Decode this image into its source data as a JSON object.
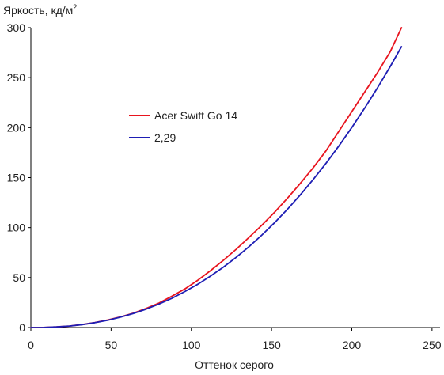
{
  "chart_data": {
    "type": "line",
    "ylabel": "Яркость, кд/м",
    "ylabel_superscript": "2",
    "xlabel": "Оттенок серого",
    "xlim": [
      0,
      255
    ],
    "ylim": [
      0,
      300
    ],
    "x_ticks": [
      "0",
      "50",
      "100",
      "150",
      "200",
      "250"
    ],
    "y_ticks": [
      "0",
      "50",
      "100",
      "150",
      "200",
      "250",
      "300"
    ],
    "grid": false,
    "legend_position": "center-left",
    "series": [
      {
        "name": "Acer Swift Go 14",
        "color": "#e8141e",
        "x": [
          0,
          8,
          16,
          24,
          32,
          40,
          48,
          56,
          64,
          72,
          80,
          88,
          96,
          104,
          112,
          120,
          128,
          136,
          144,
          152,
          160,
          168,
          176,
          184,
          192,
          200,
          208,
          216,
          224,
          231
        ],
        "y": [
          0,
          0.1,
          0.6,
          1.5,
          3.0,
          5.1,
          7.6,
          10.7,
          14.5,
          19.2,
          24.6,
          31.4,
          38.6,
          47.3,
          57.0,
          67.4,
          78.4,
          90.2,
          102.5,
          115.6,
          129.6,
          144.4,
          160.0,
          177.0,
          196.5,
          216.0,
          235.5,
          255.0,
          276.0,
          300.0
        ]
      },
      {
        "name": "2,29",
        "color": "#1e1eb4",
        "x": [
          0,
          8,
          16,
          24,
          32,
          40,
          48,
          56,
          64,
          72,
          80,
          88,
          96,
          104,
          112,
          120,
          128,
          136,
          144,
          152,
          160,
          168,
          176,
          184,
          192,
          200,
          208,
          216,
          224,
          231
        ],
        "y": [
          0,
          0.1,
          0.6,
          1.5,
          2.9,
          4.9,
          7.4,
          10.5,
          14.2,
          18.5,
          23.6,
          29.4,
          36.0,
          43.3,
          51.5,
          60.5,
          70.3,
          81.0,
          92.6,
          105.1,
          118.5,
          132.9,
          148.2,
          164.5,
          181.8,
          200.1,
          219.4,
          239.8,
          261.2,
          281.0
        ]
      }
    ]
  }
}
